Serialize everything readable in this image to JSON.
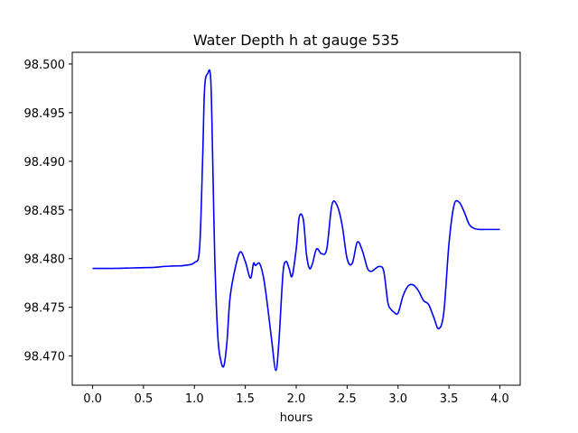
{
  "chart_data": {
    "type": "line",
    "title": "Water Depth h at gauge 535",
    "xlabel": "hours",
    "ylabel": "",
    "xlim": [
      -0.2,
      4.2
    ],
    "ylim": [
      98.467,
      98.5012
    ],
    "x_ticks": [
      "0.0",
      "0.5",
      "1.0",
      "1.5",
      "2.0",
      "2.5",
      "3.0",
      "3.5",
      "4.0"
    ],
    "x_tick_values": [
      0.0,
      0.5,
      1.0,
      1.5,
      2.0,
      2.5,
      3.0,
      3.5,
      4.0
    ],
    "y_ticks": [
      "98.470",
      "98.475",
      "98.480",
      "98.485",
      "98.490",
      "98.495",
      "98.500"
    ],
    "y_tick_values": [
      98.47,
      98.475,
      98.48,
      98.485,
      98.49,
      98.495,
      98.5
    ],
    "grid": false,
    "series": [
      {
        "color": "#0000ff",
        "x": [
          0.0,
          0.2,
          0.4,
          0.6,
          0.7,
          0.8,
          0.9,
          1.0,
          1.05,
          1.08,
          1.1,
          1.13,
          1.16,
          1.18,
          1.2,
          1.23,
          1.26,
          1.29,
          1.32,
          1.35,
          1.4,
          1.45,
          1.5,
          1.55,
          1.58,
          1.6,
          1.64,
          1.68,
          1.72,
          1.76,
          1.8,
          1.83,
          1.87,
          1.9,
          1.93,
          1.96,
          2.0,
          2.03,
          2.07,
          2.1,
          2.13,
          2.16,
          2.2,
          2.25,
          2.3,
          2.35,
          2.4,
          2.45,
          2.5,
          2.55,
          2.6,
          2.65,
          2.7,
          2.74,
          2.78,
          2.82,
          2.86,
          2.9,
          2.93,
          2.96,
          3.0,
          3.05,
          3.1,
          3.15,
          3.2,
          3.25,
          3.3,
          3.35,
          3.4,
          3.45,
          3.5,
          3.55,
          3.6,
          3.65,
          3.7,
          3.75,
          3.8,
          3.85,
          3.9,
          3.95,
          4.0
        ],
        "y": [
          98.479,
          98.479,
          98.47905,
          98.4791,
          98.4792,
          98.47925,
          98.4793,
          98.4796,
          98.481,
          98.49,
          98.4975,
          98.499,
          98.4985,
          98.49,
          98.48,
          98.472,
          98.4695,
          98.469,
          98.4715,
          98.476,
          98.479,
          98.4807,
          98.4797,
          98.478,
          98.4795,
          98.4793,
          98.4795,
          98.478,
          98.475,
          98.4715,
          98.4685,
          98.4715,
          98.4785,
          98.4797,
          98.479,
          98.4782,
          98.481,
          98.4843,
          98.484,
          98.4805,
          98.479,
          98.4795,
          98.481,
          98.4805,
          98.481,
          98.4855,
          98.4855,
          98.4835,
          98.48,
          98.4795,
          98.4817,
          98.4808,
          98.479,
          98.4787,
          98.479,
          98.4792,
          98.4787,
          98.4755,
          98.4748,
          98.4745,
          98.4744,
          98.4762,
          98.4772,
          98.4773,
          98.4767,
          98.4757,
          98.4753,
          98.474,
          98.4728,
          98.4745,
          98.4815,
          98.4855,
          98.4858,
          98.4848,
          98.4835,
          98.4831,
          98.483,
          98.483,
          98.483,
          98.483,
          98.483
        ]
      }
    ]
  }
}
